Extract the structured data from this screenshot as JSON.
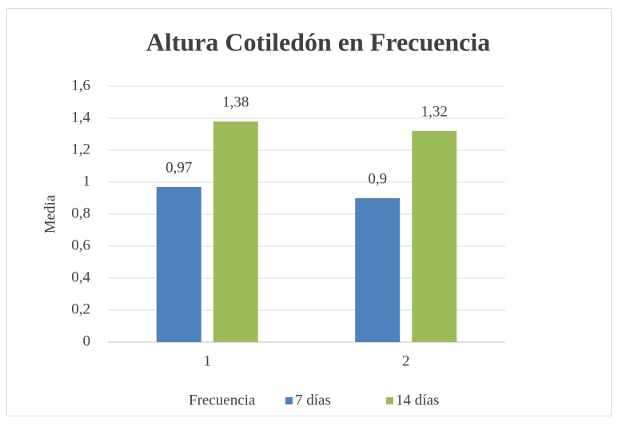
{
  "chart_data": {
    "type": "bar",
    "title": "Altura Cotiledón en Frecuencia",
    "y_label": "Media",
    "legend_title": "Frecuencia",
    "categories": [
      "1",
      "2"
    ],
    "series": [
      {
        "name": "7 días",
        "color": "#4f81bd",
        "values": [
          0.97,
          0.9
        ],
        "value_labels": [
          "0,97",
          "0,9"
        ]
      },
      {
        "name": "14 días",
        "color": "#9bbb59",
        "values": [
          1.38,
          1.32
        ],
        "value_labels": [
          "1,38",
          "1,32"
        ]
      }
    ],
    "ylim": [
      0,
      1.6
    ],
    "yticks": [
      0,
      {
        "value": 0.2,
        "label": "0,2"
      },
      {
        "value": 0.4,
        "label": "0,4"
      },
      {
        "value": 0.6,
        "label": "0,6"
      },
      {
        "value": 0.8,
        "label": "0,8"
      },
      1,
      {
        "value": 1.2,
        "label": "1,2"
      },
      {
        "value": 1.4,
        "label": "1,4"
      },
      {
        "value": 1.6,
        "label": "1,6"
      }
    ],
    "grid": true,
    "legend": "bottom"
  }
}
